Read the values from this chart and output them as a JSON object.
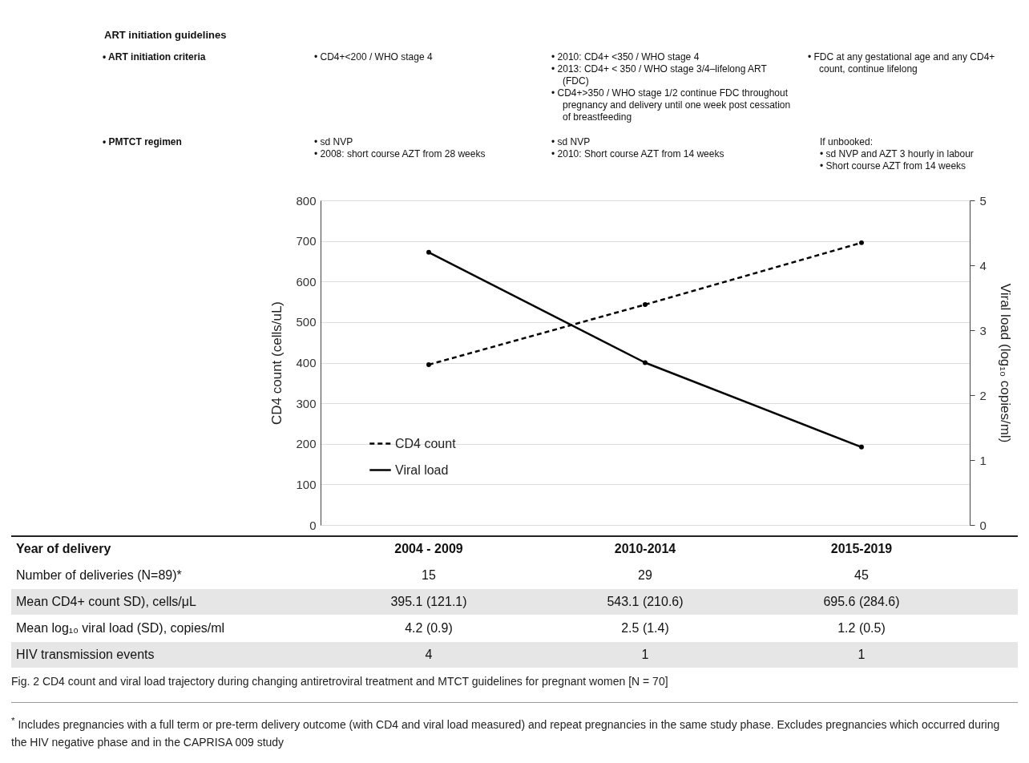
{
  "chart_data": {
    "type": "line",
    "categories": [
      "2004 - 2009",
      "2010-2014",
      "2015-2019"
    ],
    "series": [
      {
        "name": "CD4 count",
        "color": "#000000",
        "line_style": "dashed",
        "values": [
          395.1,
          543.1,
          695.6
        ],
        "value_labels": [
          "395.1 (121.1)",
          "543.1 (210.6)",
          "695.6 (284.6)"
        ]
      },
      {
        "name": "Viral load",
        "color": "#000000",
        "line_style": "solid",
        "axis": "y2",
        "values": [
          4.2,
          2.5,
          1.2
        ],
        "value_labels": [
          "4.2 (0.9)",
          "2.5 (1.4)",
          "1.2 (0.5)"
        ]
      }
    ],
    "ylabel": "CD4 count (cells/uL)",
    "y2label": "Viral load (log₁₀ copies/ml)",
    "ylim": [
      0,
      800
    ],
    "yticks": [
      0,
      100,
      200,
      300,
      400,
      500,
      600,
      700,
      800
    ],
    "y2lim": [
      0,
      5
    ],
    "y2ticks": [
      0,
      1,
      2,
      3,
      4,
      5
    ],
    "grid": "y",
    "legend": "bottom left",
    "marker": "circle",
    "annotations": [
      "ART initiation guidelines",
      "• ART initiation criteria",
      "• CD4+<200 / WHO stage 4",
      "• 2010: CD4+ <350 /  WHO stage 4",
      "• 2013: CD4+ < 350 / WHO stage 3/4–lifelong ART (FDC)",
      "• CD4+>350 / WHO stage 1/2 continue FDC throughout pregnancy and delivery until one week post cessation of breastfeeding",
      "• FDC at any gestational age and any CD4+ count, continue lifelong",
      "• PMTCT regimen",
      "• sd NVP",
      "• 2008: short course AZT from 28 weeks",
      "• sd NVP",
      "• 2010: Short course AZT from 14 weeks",
      "If unbooked:",
      "• sd NVP and AZT 3 hourly in labour",
      "• Short course AZT from 14 weeks",
      "Year of delivery",
      "Number of deliveries (N=89)*",
      "15",
      "29",
      "45",
      "Mean CD4+ count SD), cells/μL",
      "Mean log₁₀ viral load (SD), copies/ml",
      "HIV transmission events",
      "4",
      "1",
      "1",
      "Fig. 2 CD4 count and viral load trajectory during changing antiretroviral treatment and MTCT guidelines for pregnant women [N = 70]",
      "$^{*}$ Includes pregnancies with a full term or pre-term delivery outcome (with CD4 and viral load measured) and repeat pregnancies in the same study phase. Excludes pregnancies which occurred during the HIV negative phase and in the CAPRISA 009 study"
    ]
  }
}
